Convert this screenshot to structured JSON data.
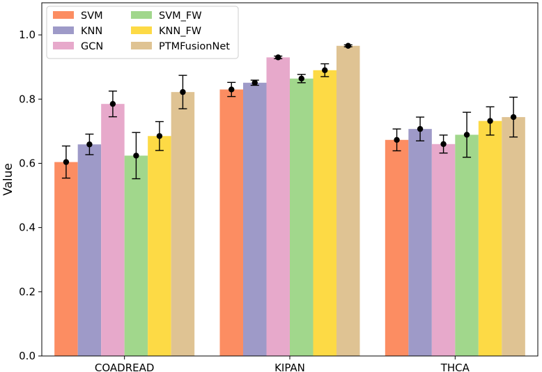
{
  "chart_data": {
    "type": "bar",
    "title": "",
    "xlabel": "",
    "ylabel": "Value",
    "ylim": [
      0,
      1.1
    ],
    "yticks": [
      0.0,
      0.2,
      0.4,
      0.6,
      0.8,
      1.0
    ],
    "ytick_labels": [
      "0.0",
      "0.2",
      "0.4",
      "0.6",
      "0.8",
      "1.0"
    ],
    "grid": false,
    "legend_position": "top-left",
    "categories": [
      "COADREAD",
      "KIPAN",
      "THCA"
    ],
    "series": [
      {
        "name": "SVM",
        "color": "#fc8d62",
        "values": [
          0.604,
          0.83,
          0.673
        ],
        "errors": [
          0.05,
          0.022,
          0.034
        ]
      },
      {
        "name": "KNN",
        "color": "#9e9ac8",
        "values": [
          0.659,
          0.851,
          0.707
        ],
        "errors": [
          0.032,
          0.008,
          0.037
        ]
      },
      {
        "name": "GCN",
        "color": "#e7a9cb",
        "values": [
          0.785,
          0.93,
          0.66
        ],
        "errors": [
          0.04,
          0.004,
          0.028
        ]
      },
      {
        "name": "SVM_FW",
        "color": "#a1d78c",
        "values": [
          0.624,
          0.864,
          0.689
        ],
        "errors": [
          0.072,
          0.013,
          0.07
        ]
      },
      {
        "name": "KNN_FW",
        "color": "#fdda45",
        "values": [
          0.685,
          0.89,
          0.732
        ],
        "errors": [
          0.045,
          0.02,
          0.044
        ]
      },
      {
        "name": "PTMFusionNet",
        "color": "#dfc393",
        "values": [
          0.822,
          0.966,
          0.744
        ],
        "errors": [
          0.052,
          0.003,
          0.062
        ]
      }
    ]
  }
}
